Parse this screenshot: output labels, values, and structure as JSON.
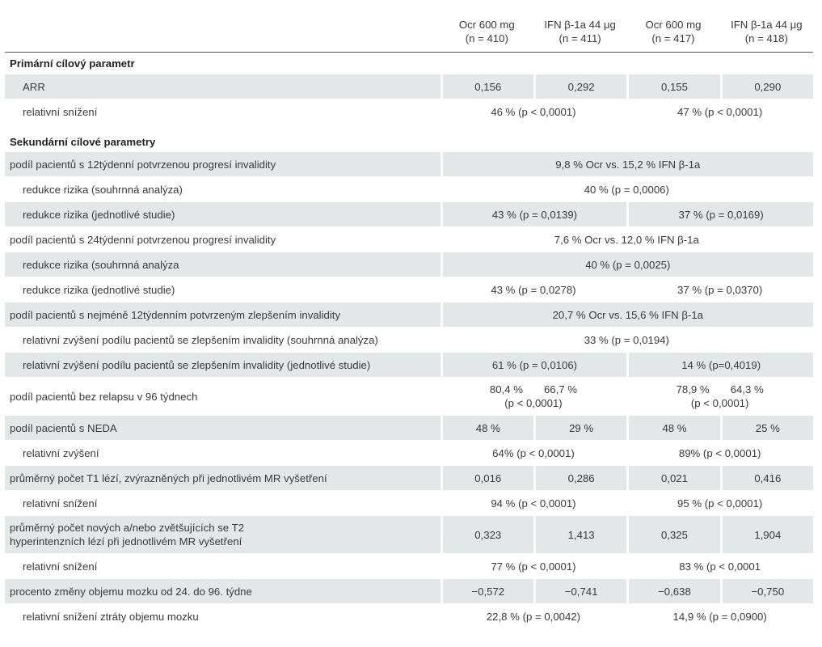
{
  "header": {
    "col1": "Ocr 600 mg\n(n = 410)",
    "col2": "IFN β-1a 44 μg\n(n = 411)",
    "col3": "Ocr  600 mg\n(n = 417)",
    "col4": "IFN β-1a 44 μg\n(n = 418)"
  },
  "sections": {
    "primary": "Primární cílový parametr",
    "secondary": "Sekundární cílové parametry"
  },
  "rows": {
    "arr": {
      "label": "ARR",
      "v1": "0,156",
      "v2": "0,292",
      "v3": "0,155",
      "v4": "0,290"
    },
    "arr_red": {
      "label": "relativní snížení",
      "a": "46 % (p < 0,0001)",
      "b": "47 % (p < 0,0001)"
    },
    "cdp12": {
      "label": "podíl pacientů s 12týdenní potvrzenou progresí invalidity",
      "all": "9,8 % Ocr vs. 15,2 % IFN β-1a"
    },
    "cdp12_pooled": {
      "label": "redukce rizika (souhrnná analýza)",
      "all": "40 % (p = 0,0006)"
    },
    "cdp12_indiv": {
      "label": "redukce rizika (jednotlivé studie)",
      "a": "43 % (p = 0,0139)",
      "b": "37 % (p = 0,0169)"
    },
    "cdp24": {
      "label": "podíl pacientů s 24týdenní potvrzenou progresí invalidity",
      "all": "7,6 % Ocr vs. 12,0 % IFN β-1a"
    },
    "cdp24_pooled": {
      "label": "redukce rizika (souhrnná analýza",
      "all": "40 % (p = 0,0025)"
    },
    "cdp24_indiv": {
      "label": "redukce rizika (jednotlivé studie)",
      "a": "43 % (p = 0,0278)",
      "b": "37 % (p = 0,0370)"
    },
    "cdi12": {
      "label": "podíl pacientů s nejméně 12týdenním potvrzeným zlepšením invalidity",
      "all": "20,7 % Ocr vs. 15,6 % IFN β-1a"
    },
    "cdi_pooled": {
      "label": "relativní zvýšení podílu pacientů se zlepšením invalidity (souhrnná analýza)",
      "all": "33 % (p = 0,0194)"
    },
    "cdi_indiv": {
      "label": "relativní zvýšení podílu pacientů se zlepšením invalidity (jednotlivé studie)",
      "a": "61 % (p = 0,0106)",
      "b": "14 % (p=0,4019)"
    },
    "relapse_free": {
      "label": "podíl pacientů bez relapsu v 96 týdnech",
      "a1": "80,4 %",
      "a2": "66,7 %",
      "ap": "(p < 0,0001)",
      "b1": "78,9 %",
      "b2": "64,3 %",
      "bp": "(p  < 0,0001)"
    },
    "neda": {
      "label": "podíl pacientů s NEDA",
      "v1": "48 %",
      "v2": "29 %",
      "v3": "48 %",
      "v4": "25 %"
    },
    "neda_inc": {
      "label": "relativní zvýšení",
      "a": "64% (p < 0,0001)",
      "b": "89% (p < 0,0001)"
    },
    "t1": {
      "label": "průměrný počet T1 lézí, zvýrazněných při jednotlivém MR vyšetření",
      "v1": "0,016",
      "v2": "0,286",
      "v3": "0,021",
      "v4": "0,416"
    },
    "t1_red": {
      "label": "relativní snížení",
      "a": "94 % (p < 0,0001)",
      "b": "95 % (p < 0,0001)"
    },
    "t2": {
      "label1": "průměrný počet nových a/nebo zvětšujících se T2",
      "label2": "hyperintenzních lézí při jednotlivém MR vyšetření",
      "v1": "0,323",
      "v2": "1,413",
      "v3": "0,325",
      "v4": "1,904"
    },
    "t2_red": {
      "label": "relativní snížení",
      "a": "77 % (p < 0,0001)",
      "b": "83 % (p < 0,0001"
    },
    "brain": {
      "label": "procento změny objemu mozku od 24. do 96. týdne",
      "v1": "−0,572",
      "v2": "−0,741",
      "v3": "−0,638",
      "v4": "−0,750"
    },
    "brain_red": {
      "label": "relativní snížení ztráty objemu mozku",
      "a": "22,8 % (p = 0,0042)",
      "b": "14,9 % (p = 0,0900)"
    }
  }
}
